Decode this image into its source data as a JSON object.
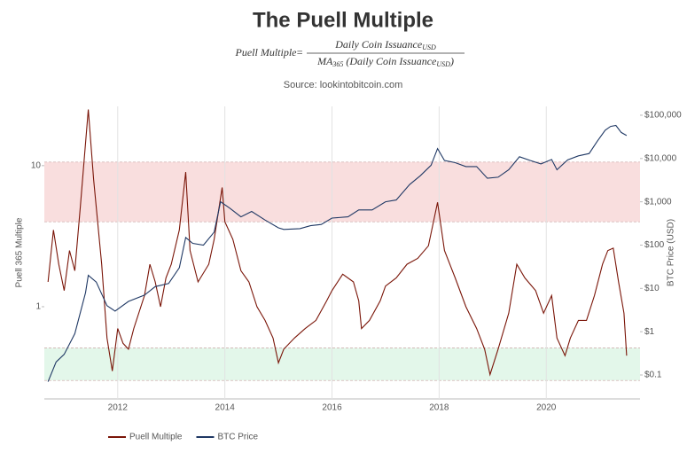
{
  "formula": {
    "lhs": "Puell Multiple",
    "eq": "=",
    "numerator": "Daily Coin Issuance",
    "numerator_sub": "USD",
    "denominator": "MA",
    "denominator_sub": "365",
    "denominator_rest": "(Daily Coin Issuance",
    "denominator_rest_sub": "USD",
    "denominator_end": ")"
  },
  "chart_data": {
    "type": "line",
    "title": "The Puell Multiple",
    "subtitle": "Source: lookintobitcoin.com",
    "ylabel": "Puell 365 Multiple",
    "y2label": "BTC Price (USD)",
    "log_y": true,
    "log_y2": true,
    "grid": true,
    "legend": "bottom",
    "xlim": [
      2010.63,
      2021.75
    ],
    "xticks": [
      2012,
      2014,
      2016,
      2018,
      2020
    ],
    "ylim": [
      0.222,
      26.3
    ],
    "yticks": [
      1,
      10
    ],
    "y2lim": [
      0.028,
      160000
    ],
    "y2ticks": [
      {
        "value": 0.1,
        "label": "$0.1"
      },
      {
        "value": 1,
        "label": "$1"
      },
      {
        "value": 10,
        "label": "$10"
      },
      {
        "value": 100,
        "label": "$100"
      },
      {
        "value": 1000,
        "label": "$1,000"
      },
      {
        "value": 10000,
        "label": "$10,000"
      },
      {
        "value": 100000,
        "label": "$100,000"
      }
    ],
    "bands": [
      {
        "range": [
          4,
          10.6
        ],
        "color": "#f9dede"
      },
      {
        "range": [
          0.3,
          0.51
        ],
        "color": "#e3f7ea"
      }
    ],
    "series": [
      {
        "name": "Puell Multiple",
        "color": "#7a1508",
        "axis": "y",
        "x": [
          2010.7,
          2010.8,
          2010.9,
          2011.0,
          2011.1,
          2011.2,
          2011.3,
          2011.45,
          2011.55,
          2011.7,
          2011.8,
          2011.9,
          2012.0,
          2012.1,
          2012.2,
          2012.3,
          2012.5,
          2012.6,
          2012.7,
          2012.8,
          2012.9,
          2013.0,
          2013.15,
          2013.27,
          2013.35,
          2013.5,
          2013.7,
          2013.8,
          2013.95,
          2014.0,
          2014.15,
          2014.3,
          2014.45,
          2014.6,
          2014.75,
          2014.9,
          2015.0,
          2015.1,
          2015.3,
          2015.5,
          2015.7,
          2015.9,
          2016.0,
          2016.2,
          2016.4,
          2016.5,
          2016.55,
          2016.7,
          2016.9,
          2017.0,
          2017.2,
          2017.4,
          2017.6,
          2017.8,
          2017.97,
          2018.1,
          2018.3,
          2018.5,
          2018.7,
          2018.85,
          2018.95,
          2019.1,
          2019.3,
          2019.45,
          2019.6,
          2019.8,
          2019.95,
          2020.1,
          2020.2,
          2020.35,
          2020.45,
          2020.6,
          2020.75,
          2020.9,
          2021.05,
          2021.15,
          2021.25,
          2021.35,
          2021.45,
          2021.5
        ],
        "values": [
          1.5,
          3.5,
          2,
          1.3,
          2.5,
          1.8,
          5,
          25,
          8,
          2,
          0.6,
          0.35,
          0.7,
          0.55,
          0.5,
          0.7,
          1.2,
          2.0,
          1.5,
          1.0,
          1.6,
          2.0,
          3.5,
          9,
          2.5,
          1.5,
          2,
          3,
          7,
          4,
          3,
          1.8,
          1.5,
          1.0,
          0.8,
          0.6,
          0.4,
          0.5,
          0.6,
          0.7,
          0.8,
          1.1,
          1.3,
          1.7,
          1.5,
          1.1,
          0.7,
          0.8,
          1.1,
          1.4,
          1.6,
          2.0,
          2.2,
          2.7,
          5.5,
          2.5,
          1.6,
          1.0,
          0.7,
          0.5,
          0.33,
          0.5,
          0.9,
          2.0,
          1.6,
          1.3,
          0.9,
          1.2,
          0.6,
          0.45,
          0.6,
          0.8,
          0.8,
          1.2,
          2.0,
          2.5,
          2.6,
          1.5,
          0.9,
          0.45
        ]
      },
      {
        "name": "BTC Price",
        "color": "#1f3864",
        "axis": "y2",
        "x": [
          2010.7,
          2010.85,
          2011.0,
          2011.2,
          2011.4,
          2011.45,
          2011.6,
          2011.8,
          2011.95,
          2012.2,
          2012.5,
          2012.7,
          2012.95,
          2013.15,
          2013.27,
          2013.4,
          2013.6,
          2013.8,
          2013.92,
          2014.1,
          2014.3,
          2014.5,
          2014.75,
          2015.0,
          2015.1,
          2015.4,
          2015.6,
          2015.8,
          2016.0,
          2016.3,
          2016.5,
          2016.75,
          2017.0,
          2017.2,
          2017.45,
          2017.65,
          2017.85,
          2017.97,
          2018.1,
          2018.3,
          2018.5,
          2018.7,
          2018.9,
          2019.1,
          2019.3,
          2019.5,
          2019.7,
          2019.9,
          2020.1,
          2020.2,
          2020.4,
          2020.6,
          2020.8,
          2020.95,
          2021.1,
          2021.2,
          2021.3,
          2021.4,
          2021.5
        ],
        "values": [
          0.07,
          0.2,
          0.3,
          0.9,
          8,
          20,
          14,
          4,
          3,
          5,
          7,
          11,
          13,
          30,
          150,
          110,
          100,
          200,
          1000,
          700,
          450,
          600,
          380,
          250,
          230,
          240,
          280,
          300,
          420,
          450,
          650,
          650,
          1000,
          1100,
          2500,
          4000,
          7000,
          17000,
          9000,
          8000,
          6500,
          6500,
          3500,
          3700,
          5500,
          11000,
          9000,
          7500,
          9500,
          5500,
          9300,
          11500,
          13000,
          25000,
          45000,
          55000,
          58000,
          40000,
          34000
        ]
      }
    ]
  }
}
